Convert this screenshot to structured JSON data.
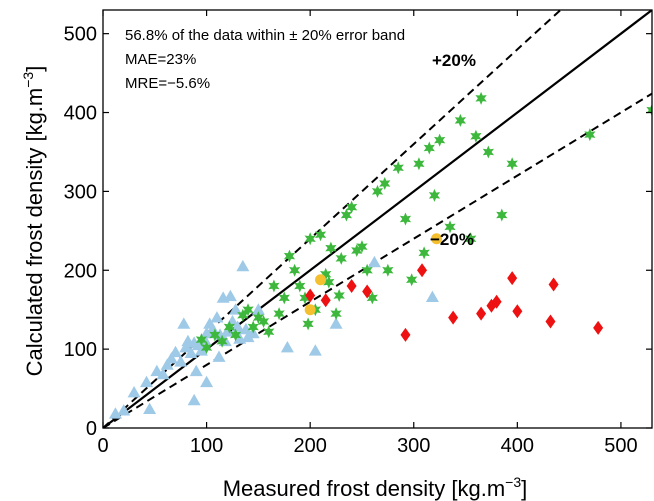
{
  "chart_data": {
    "type": "scatter",
    "xlabel": "Measured frost density [kg.m",
    "xlabel_sup": "−3",
    "xlabel_end": "]",
    "ylabel": "Calculated frost density [kg.m",
    "ylabel_sup": "−3",
    "ylabel_end": "]",
    "xlim": [
      0,
      530
    ],
    "ylim": [
      0,
      530
    ],
    "xticks": [
      0,
      100,
      200,
      300,
      400,
      500
    ],
    "yticks": [
      0,
      100,
      200,
      300,
      400,
      500
    ],
    "grid": false,
    "annotations": {
      "line1": "56.8% of the data within ± 20% error band",
      "line2": "MAE=23%",
      "line3": "MRE=−5.6%"
    },
    "band_labels": {
      "plus": "+20%",
      "minus": "−20%"
    },
    "reference_lines": [
      {
        "slope": 1.0,
        "style": "solid"
      },
      {
        "slope": 1.2,
        "style": "dashed"
      },
      {
        "slope": 0.8,
        "style": "dashed"
      }
    ],
    "series": [
      {
        "marker": "triangle",
        "color": "#9ecae8",
        "points": [
          [
            12,
            18
          ],
          [
            20,
            22
          ],
          [
            30,
            45
          ],
          [
            42,
            58
          ],
          [
            45,
            24
          ],
          [
            52,
            72
          ],
          [
            58,
            68
          ],
          [
            62,
            80
          ],
          [
            66,
            88
          ],
          [
            70,
            96
          ],
          [
            75,
            84
          ],
          [
            80,
            102
          ],
          [
            82,
            110
          ],
          [
            85,
            95
          ],
          [
            88,
            108
          ],
          [
            90,
            72
          ],
          [
            92,
            105
          ],
          [
            95,
            98
          ],
          [
            98,
            112
          ],
          [
            100,
            120
          ],
          [
            103,
            132
          ],
          [
            106,
            125
          ],
          [
            110,
            140
          ],
          [
            113,
            118
          ],
          [
            116,
            165
          ],
          [
            118,
            110
          ],
          [
            120,
            122
          ],
          [
            123,
            167
          ],
          [
            125,
            135
          ],
          [
            128,
            150
          ],
          [
            130,
            128
          ],
          [
            132,
            113
          ],
          [
            135,
            205
          ],
          [
            138,
            125
          ],
          [
            140,
            115
          ],
          [
            145,
            120
          ],
          [
            88,
            35
          ],
          [
            100,
            58
          ],
          [
            112,
            90
          ],
          [
            78,
            132
          ],
          [
            178,
            102
          ],
          [
            205,
            98
          ],
          [
            225,
            132
          ],
          [
            262,
            210
          ],
          [
            318,
            166
          ],
          [
            150,
            150
          ]
        ]
      },
      {
        "marker": "star",
        "color": "#3db83d",
        "points": [
          [
            95,
            112
          ],
          [
            100,
            102
          ],
          [
            108,
            118
          ],
          [
            115,
            110
          ],
          [
            122,
            128
          ],
          [
            128,
            118
          ],
          [
            135,
            143
          ],
          [
            140,
            150
          ],
          [
            145,
            128
          ],
          [
            150,
            140
          ],
          [
            155,
            135
          ],
          [
            160,
            122
          ],
          [
            165,
            180
          ],
          [
            170,
            145
          ],
          [
            175,
            165
          ],
          [
            180,
            218
          ],
          [
            185,
            200
          ],
          [
            190,
            180
          ],
          [
            195,
            165
          ],
          [
            198,
            132
          ],
          [
            200,
            240
          ],
          [
            205,
            150
          ],
          [
            210,
            245
          ],
          [
            215,
            195
          ],
          [
            218,
            185
          ],
          [
            220,
            228
          ],
          [
            225,
            145
          ],
          [
            228,
            168
          ],
          [
            230,
            215
          ],
          [
            235,
            270
          ],
          [
            240,
            280
          ],
          [
            245,
            225
          ],
          [
            250,
            230
          ],
          [
            255,
            200
          ],
          [
            260,
            165
          ],
          [
            265,
            300
          ],
          [
            272,
            310
          ],
          [
            275,
            200
          ],
          [
            285,
            330
          ],
          [
            292,
            265
          ],
          [
            298,
            188
          ],
          [
            305,
            335
          ],
          [
            310,
            222
          ],
          [
            315,
            355
          ],
          [
            320,
            295
          ],
          [
            325,
            365
          ],
          [
            335,
            255
          ],
          [
            345,
            390
          ],
          [
            355,
            240
          ],
          [
            360,
            370
          ],
          [
            365,
            418
          ],
          [
            372,
            350
          ],
          [
            385,
            270
          ],
          [
            395,
            335
          ],
          [
            470,
            372
          ],
          [
            530,
            403
          ]
        ]
      },
      {
        "marker": "circle",
        "color": "#f5c030",
        "points": [
          [
            200,
            150
          ],
          [
            210,
            188
          ],
          [
            322,
            240
          ]
        ]
      },
      {
        "marker": "diamond",
        "color": "#ee1111",
        "points": [
          [
            200,
            168
          ],
          [
            215,
            162
          ],
          [
            240,
            180
          ],
          [
            255,
            173
          ],
          [
            292,
            118
          ],
          [
            308,
            200
          ],
          [
            338,
            140
          ],
          [
            365,
            145
          ],
          [
            375,
            155
          ],
          [
            380,
            160
          ],
          [
            395,
            190
          ],
          [
            400,
            148
          ],
          [
            432,
            135
          ],
          [
            435,
            182
          ],
          [
            478,
            127
          ]
        ]
      }
    ]
  }
}
